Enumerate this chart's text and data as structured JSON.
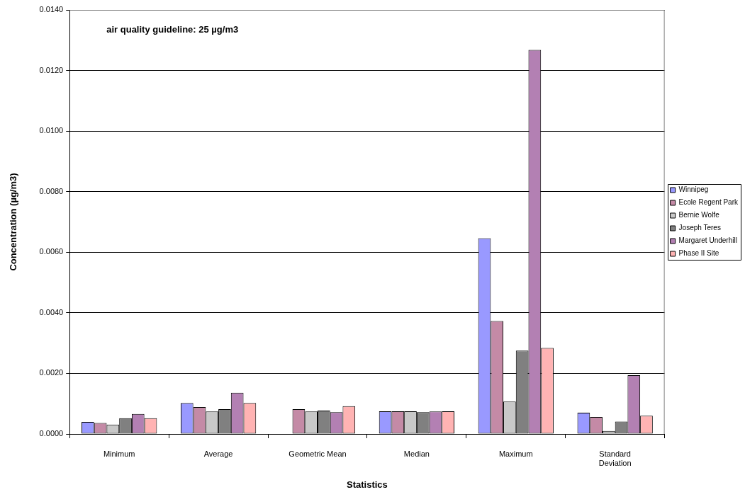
{
  "chart_data": {
    "type": "bar",
    "xlabel": "Statistics",
    "ylabel": "Concentration (µg/m3)",
    "annotations": [
      "air quality guideline: 25 µg/m3"
    ],
    "categories": [
      "Minimum",
      "Average",
      "Geometric Mean",
      "Median",
      "Maximum",
      "Standard Deviation"
    ],
    "series": [
      {
        "name": "Winnipeg",
        "color": "#9999ff",
        "values": [
          0.0004,
          0.00102,
          null,
          0.00075,
          0.00646,
          0.0007
        ]
      },
      {
        "name": "Ecole Regent Park",
        "color": "#c48aa6",
        "values": [
          0.00036,
          0.00089,
          0.00082,
          0.00075,
          0.00373,
          0.00056
        ]
      },
      {
        "name": "Bernie Wolfe",
        "color": "#c8c8c8",
        "values": [
          0.00031,
          0.00074,
          0.00074,
          0.00075,
          0.00107,
          0.0001
        ]
      },
      {
        "name": "Joseph Teres",
        "color": "#808080",
        "values": [
          0.00052,
          0.00082,
          0.00077,
          0.00072,
          0.00275,
          0.00041
        ]
      },
      {
        "name": "Margaret Underhill",
        "color": "#b380b3",
        "values": [
          0.00066,
          0.00136,
          0.00072,
          0.00074,
          0.01268,
          0.00194
        ]
      },
      {
        "name": "Phase II Site",
        "color": "#ffb3b3",
        "values": [
          0.00052,
          0.00102,
          0.00092,
          0.00075,
          0.00284,
          0.0006
        ]
      }
    ],
    "ylim": [
      0,
      0.014
    ],
    "yticks": [
      {
        "value": 0,
        "label": "0.0000"
      },
      {
        "value": 0.002,
        "label": "0.0020"
      },
      {
        "value": 0.004,
        "label": "0.0040"
      },
      {
        "value": 0.006,
        "label": "0.0060"
      },
      {
        "value": 0.008,
        "label": "0.0080"
      },
      {
        "value": 0.01,
        "label": "0.0100"
      },
      {
        "value": 0.012,
        "label": "0.0120"
      },
      {
        "value": 0.014,
        "label": "0.0140"
      }
    ],
    "grid": "y",
    "legend": "right"
  }
}
